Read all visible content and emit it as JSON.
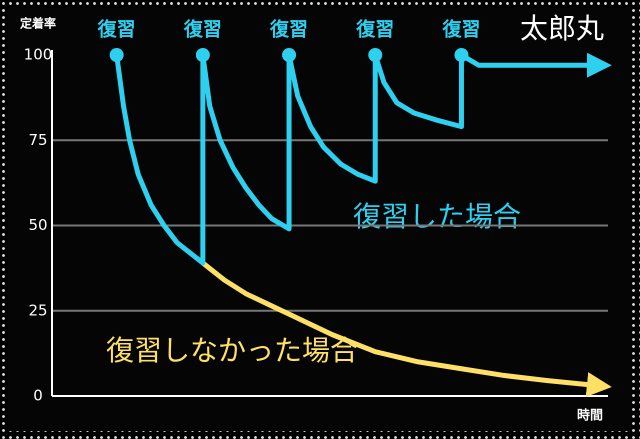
{
  "chart_data": {
    "type": "line",
    "y_label": "定着率",
    "x_label": "時間",
    "watermark": "太郎丸",
    "review_label": "復習",
    "review_x": [
      0,
      1,
      2,
      3,
      4
    ],
    "xlim": [
      -0.75,
      5.7
    ],
    "ylim": [
      0,
      100
    ],
    "yticks": [
      0,
      25,
      50,
      75,
      100
    ],
    "grid": true,
    "series": [
      {
        "name": "復習した場合",
        "color": "#2ed0f0",
        "x": [
          0,
          0.08,
          0.15,
          0.25,
          0.4,
          0.55,
          0.7,
          0.85,
          1,
          1,
          1.08,
          1.2,
          1.35,
          1.5,
          1.65,
          1.8,
          2,
          2,
          2.1,
          2.25,
          2.4,
          2.6,
          2.8,
          3,
          3,
          3.1,
          3.25,
          3.45,
          3.7,
          4,
          4,
          4.2,
          5.6
        ],
        "values": [
          100,
          85,
          75,
          65,
          56,
          50,
          45,
          42,
          39,
          100,
          85,
          75,
          67,
          61,
          56,
          52,
          49,
          100,
          88,
          79,
          73,
          68,
          65,
          63,
          100,
          92,
          86,
          83,
          81,
          79,
          100,
          97,
          97
        ]
      },
      {
        "name": "復習しなかった場合",
        "color": "#ffe066",
        "x": [
          1,
          1.25,
          1.5,
          1.75,
          2,
          2.5,
          3,
          3.5,
          4,
          4.5,
          5,
          5.6
        ],
        "values": [
          39,
          34,
          30,
          27,
          24,
          18,
          13,
          10,
          8,
          6,
          4.5,
          3
        ]
      }
    ]
  }
}
